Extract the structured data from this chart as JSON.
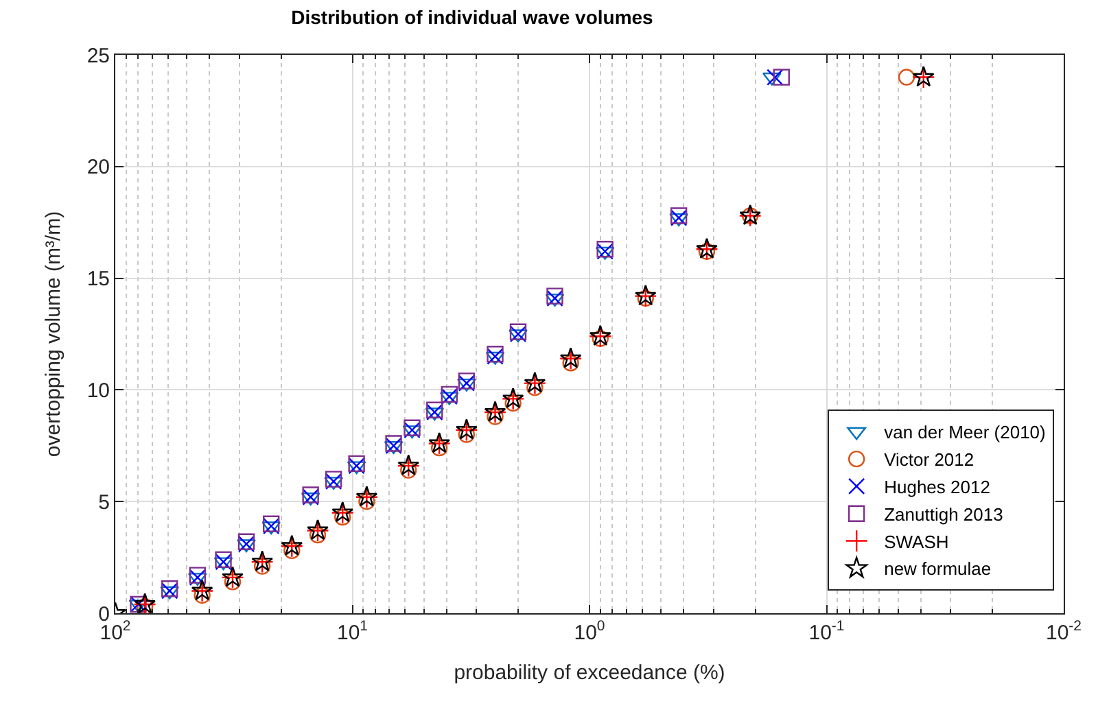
{
  "chart_data": {
    "type": "scatter",
    "title": "Distribution of individual wave volumes",
    "xlabel": "probability of exceedance (%)",
    "ylabel": "overtopping volume (m³/m)",
    "log": "x",
    "xlim": [
      100,
      0.01
    ],
    "xticks": [
      {
        "value": 100,
        "label": "10$^{2}$"
      },
      {
        "value": 10,
        "label": "10$^{1}$"
      },
      {
        "value": 1,
        "label": "10$^{0}$"
      },
      {
        "value": 0.1,
        "label": "10$^{-1}$"
      },
      {
        "value": 0.01,
        "label": "10$^{-2}$"
      }
    ],
    "ylim": [
      0,
      25
    ],
    "yticks": [
      0,
      5,
      10,
      15,
      20,
      25
    ],
    "grid": true,
    "legend": "bottom right",
    "series": [
      {
        "name": "van der Meer (2010)",
        "color": "#0072bd",
        "marker": "triangle",
        "x": [
          80,
          59,
          45,
          35,
          28,
          22,
          15,
          12,
          9.6,
          6.7,
          5.6,
          4.5,
          3.9,
          3.3,
          2.5,
          2.0,
          1.4,
          0.86,
          0.42,
          0.17
        ],
        "values": [
          0.4,
          1.0,
          1.6,
          2.3,
          3.1,
          3.9,
          5.2,
          5.9,
          6.6,
          7.5,
          8.2,
          9.0,
          9.7,
          10.3,
          11.5,
          12.5,
          14.1,
          16.2,
          17.7,
          24
        ]
      },
      {
        "name": "Victor 2012",
        "color": "#d95319",
        "marker": "circle",
        "x": [
          75,
          43,
          32,
          24,
          18,
          14,
          11,
          8.7,
          5.8,
          4.3,
          3.3,
          2.5,
          2.1,
          1.7,
          1.2,
          0.9,
          0.58,
          0.32,
          0.21,
          0.046
        ],
        "values": [
          0.3,
          0.8,
          1.4,
          2.1,
          2.8,
          3.5,
          4.3,
          5.0,
          6.4,
          7.4,
          8.0,
          8.8,
          9.4,
          10.1,
          11.2,
          12.3,
          14.1,
          16.2,
          17.8,
          24
        ]
      },
      {
        "name": "Hughes 2012",
        "color": "#0000ff",
        "marker": "cross",
        "x": [
          80,
          59,
          45,
          35,
          28,
          22,
          15,
          12,
          9.6,
          6.7,
          5.6,
          4.5,
          3.9,
          3.3,
          2.5,
          2.0,
          1.4,
          0.86,
          0.42,
          0.165
        ],
        "values": [
          0.4,
          1.0,
          1.6,
          2.3,
          3.1,
          3.9,
          5.2,
          5.9,
          6.6,
          7.5,
          8.2,
          9.0,
          9.7,
          10.3,
          11.5,
          12.5,
          14.1,
          16.2,
          17.7,
          24
        ]
      },
      {
        "name": "Zanuttigh 2013",
        "color": "#7e2f8e",
        "marker": "square",
        "x": [
          80,
          59,
          45,
          35,
          28,
          22,
          15,
          12,
          9.6,
          6.7,
          5.6,
          4.5,
          3.9,
          3.3,
          2.5,
          2.0,
          1.4,
          0.86,
          0.42,
          0.155
        ],
        "values": [
          0.4,
          1.1,
          1.7,
          2.4,
          3.2,
          4.0,
          5.3,
          6.0,
          6.7,
          7.6,
          8.3,
          9.1,
          9.8,
          10.4,
          11.6,
          12.6,
          14.2,
          16.3,
          17.8,
          24
        ]
      },
      {
        "name": "SWASH",
        "color": "#ff0000",
        "marker": "plus",
        "x": [
          75,
          43,
          32,
          24,
          18,
          14,
          11,
          8.7,
          5.8,
          4.3,
          3.3,
          2.5,
          2.1,
          1.7,
          1.2,
          0.9,
          0.58,
          0.32,
          0.21,
          0.039
        ],
        "values": [
          0.4,
          1.0,
          1.6,
          2.3,
          3.0,
          3.7,
          4.5,
          5.2,
          6.6,
          7.6,
          8.2,
          9.0,
          9.6,
          10.3,
          11.4,
          12.4,
          14.2,
          16.3,
          17.8,
          24
        ]
      },
      {
        "name": "new formulae",
        "color": "#000000",
        "marker": "star",
        "x": [
          100,
          75,
          43,
          32,
          24,
          18,
          14,
          11,
          8.7,
          5.8,
          4.3,
          3.3,
          2.5,
          2.1,
          1.7,
          1.2,
          0.9,
          0.58,
          0.32,
          0.21,
          0.039
        ],
        "values": [
          0,
          0.4,
          1.0,
          1.6,
          2.3,
          3.0,
          3.7,
          4.5,
          5.2,
          6.6,
          7.6,
          8.2,
          9.0,
          9.6,
          10.3,
          11.4,
          12.4,
          14.2,
          16.3,
          17.8,
          24
        ]
      }
    ]
  }
}
